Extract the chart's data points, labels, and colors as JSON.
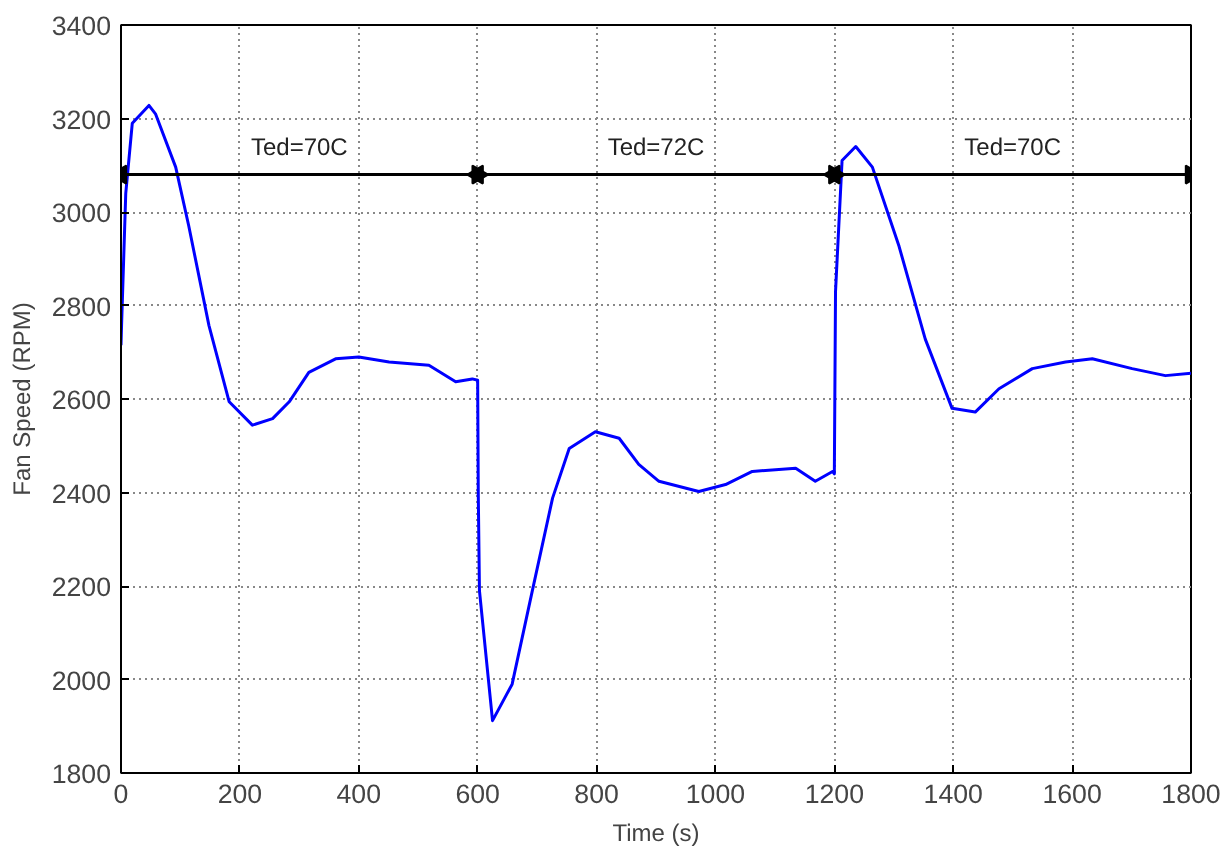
{
  "chart_data": {
    "type": "line",
    "xlabel": "Time (s)",
    "ylabel": "Fan Speed (RPM)",
    "x": [
      0,
      1,
      8,
      19,
      47,
      58,
      92,
      114,
      148,
      182,
      221,
      255,
      283,
      316,
      361,
      400,
      451,
      518,
      563,
      591,
      600,
      601,
      603,
      625,
      658,
      692,
      726,
      754,
      798,
      838,
      871,
      905,
      972,
      1017,
      1062,
      1135,
      1168,
      1197,
      1200,
      1202,
      1213,
      1236,
      1264,
      1309,
      1353,
      1398,
      1437,
      1477,
      1533,
      1589,
      1634,
      1701,
      1757,
      1800
    ],
    "series": [
      {
        "color": "#0000ff",
        "values": [
          2715,
          2760,
          3040,
          3190,
          3228,
          3210,
          3096,
          2970,
          2757,
          2594,
          2544,
          2558,
          2594,
          2657,
          2686,
          2690,
          2679,
          2672,
          2637,
          2643,
          2640,
          2400,
          2190,
          1912,
          1990,
          2190,
          2388,
          2494,
          2530,
          2516,
          2460,
          2424,
          2402,
          2417,
          2445,
          2452,
          2424,
          2445,
          2440,
          2830,
          3110,
          3140,
          3096,
          2926,
          2728,
          2580,
          2572,
          2622,
          2665,
          2679,
          2686,
          2665,
          2650,
          2655
        ]
      },
      {
        "color": "#000000",
        "x": [
          0,
          600
        ],
        "values": [
          3080,
          3080
        ],
        "marker": "triangle"
      },
      {
        "color": "#000000",
        "x": [
          600,
          1200
        ],
        "values": [
          3080,
          3080
        ],
        "marker": "triangle"
      },
      {
        "color": "#000000",
        "x": [
          1200,
          1800
        ],
        "values": [
          3080,
          3080
        ],
        "marker": "triangle"
      }
    ],
    "xlim": [
      0,
      1800
    ],
    "ylim": [
      1800,
      3400
    ],
    "xticks": [
      0,
      200,
      400,
      600,
      800,
      1000,
      1200,
      1400,
      1600,
      1800
    ],
    "yticks": [
      1800,
      2000,
      2200,
      2400,
      2600,
      2800,
      3000,
      3200,
      3400
    ],
    "grid": true,
    "marker": "none",
    "line_style": "solid",
    "annotations": [
      "Ted=70C",
      "Ted=72C",
      "Ted=70C"
    ]
  }
}
